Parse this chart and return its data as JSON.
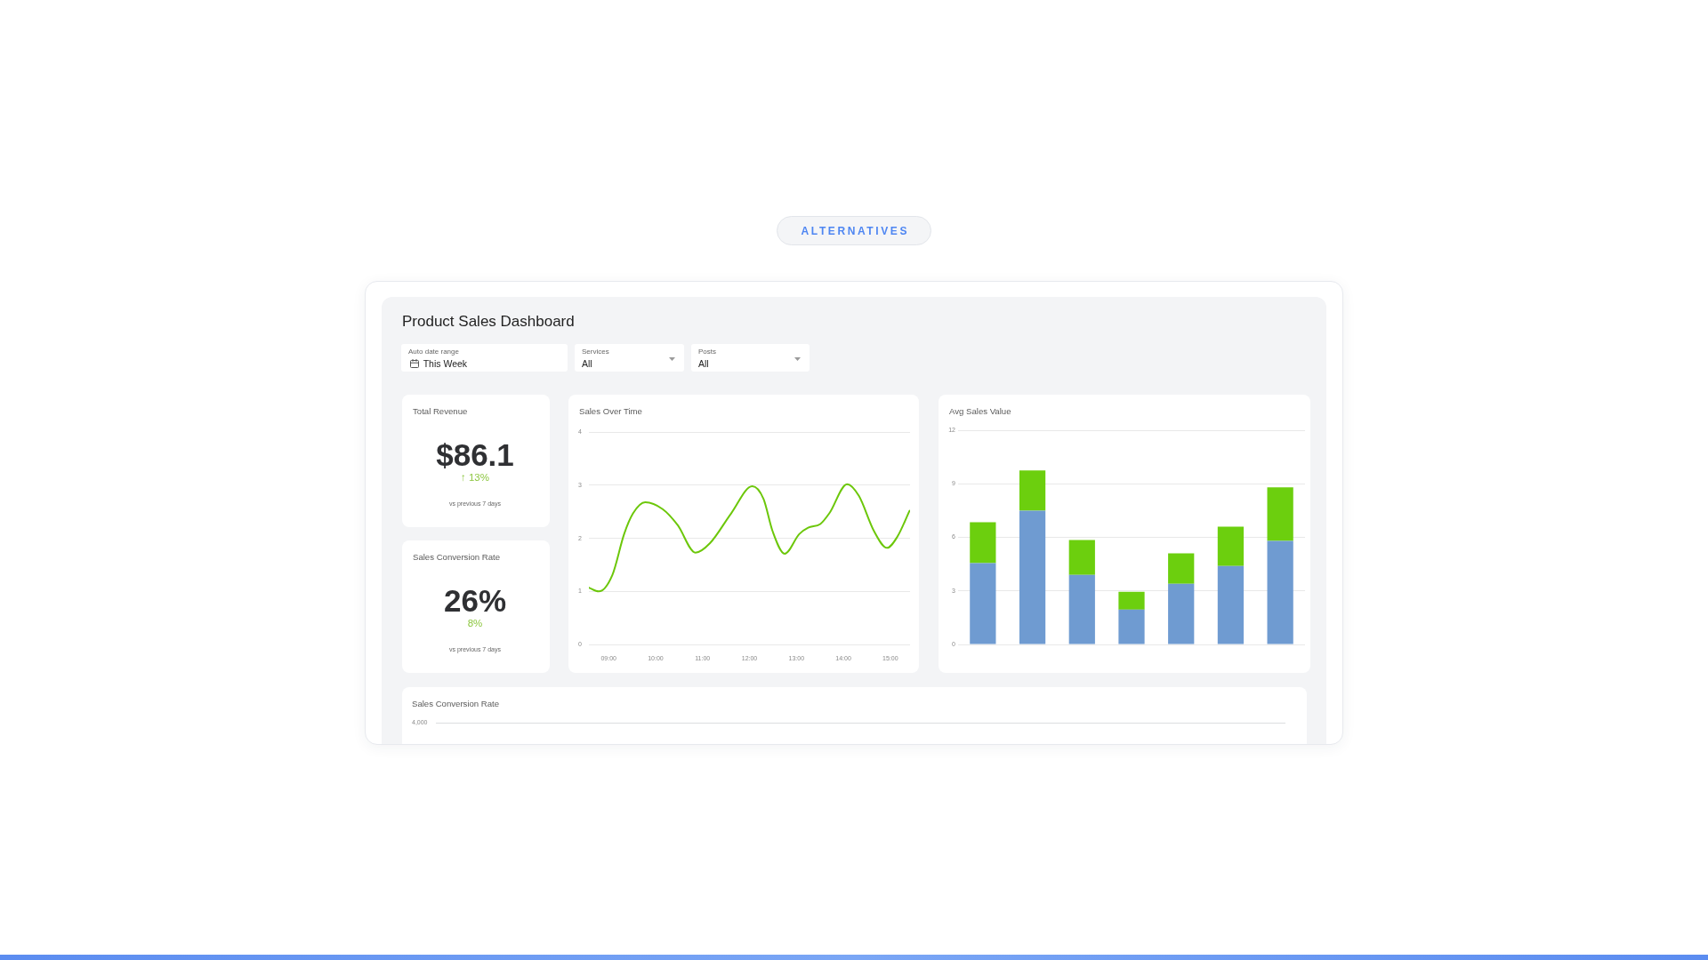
{
  "chart_data": [
    {
      "type": "other",
      "title": "Product Sales Dashboard",
      "annotations": [
        "ALTERNATIVES",
        "Auto date range",
        "This Week",
        "Services",
        "All",
        "Posts",
        "All"
      ]
    },
    {
      "type": "other",
      "title": "Total Revenue",
      "annotations": [
        "$86.1",
        "↑ 13%",
        "vs previous 7 days"
      ]
    },
    {
      "type": "other",
      "title": "Sales Conversion Rate",
      "annotations": [
        "26%",
        "8%",
        "vs previous 7 days"
      ]
    },
    {
      "type": "line",
      "title": "Sales Over Time",
      "x": [
        8.58,
        8.79,
        9.08,
        9.33,
        9.52,
        9.78,
        10.15,
        10.47,
        10.85,
        11.16,
        11.61,
        12.06,
        12.3,
        12.49,
        12.75,
        13.06,
        13.25,
        13.51,
        13.7,
        14.08,
        14.33,
        14.65,
        14.93,
        15.15,
        15.41
      ],
      "series": [
        {
          "color": "#6cc70a",
          "values": [
            1.07,
            1.0,
            1.31,
            2.08,
            2.47,
            2.68,
            2.55,
            2.25,
            1.73,
            1.91,
            2.47,
            2.98,
            2.74,
            2.14,
            1.71,
            2.08,
            2.2,
            2.27,
            2.47,
            3.02,
            2.8,
            2.14,
            1.82,
            2.03,
            2.52
          ]
        }
      ],
      "xlim": [
        8.58,
        15.42
      ],
      "xticks": [
        {
          "value": 9,
          "label": "09:00"
        },
        {
          "value": 10,
          "label": "10:00"
        },
        {
          "value": 11,
          "label": "11:00"
        },
        {
          "value": 12,
          "label": "12:00"
        },
        {
          "value": 13,
          "label": "13:00"
        },
        {
          "value": 14,
          "label": "14:00"
        },
        {
          "value": 15,
          "label": "15:00"
        }
      ],
      "ylim": [
        0,
        4
      ],
      "yticks": [
        0,
        1,
        2,
        3,
        4
      ],
      "grid": "y"
    },
    {
      "type": "bar",
      "title": "Avg Sales Value",
      "categories": [
        null,
        null,
        null,
        null,
        null,
        null,
        null
      ],
      "series": [
        {
          "color": "#6f9bd1",
          "values": [
            4.55,
            7.5,
            3.9,
            1.95,
            3.4,
            4.4,
            5.8
          ]
        },
        {
          "color": "#6ccf0e",
          "values": [
            2.3,
            2.25,
            1.95,
            1.0,
            1.7,
            2.2,
            3.0
          ]
        }
      ],
      "stacked": true,
      "ylim": [
        0,
        12
      ],
      "yticks": [
        0,
        3,
        6,
        9,
        12
      ],
      "grid": "y"
    },
    {
      "type": "other",
      "title": "Sales Conversion Rate",
      "annotations": [
        "4,000"
      ]
    }
  ]
}
